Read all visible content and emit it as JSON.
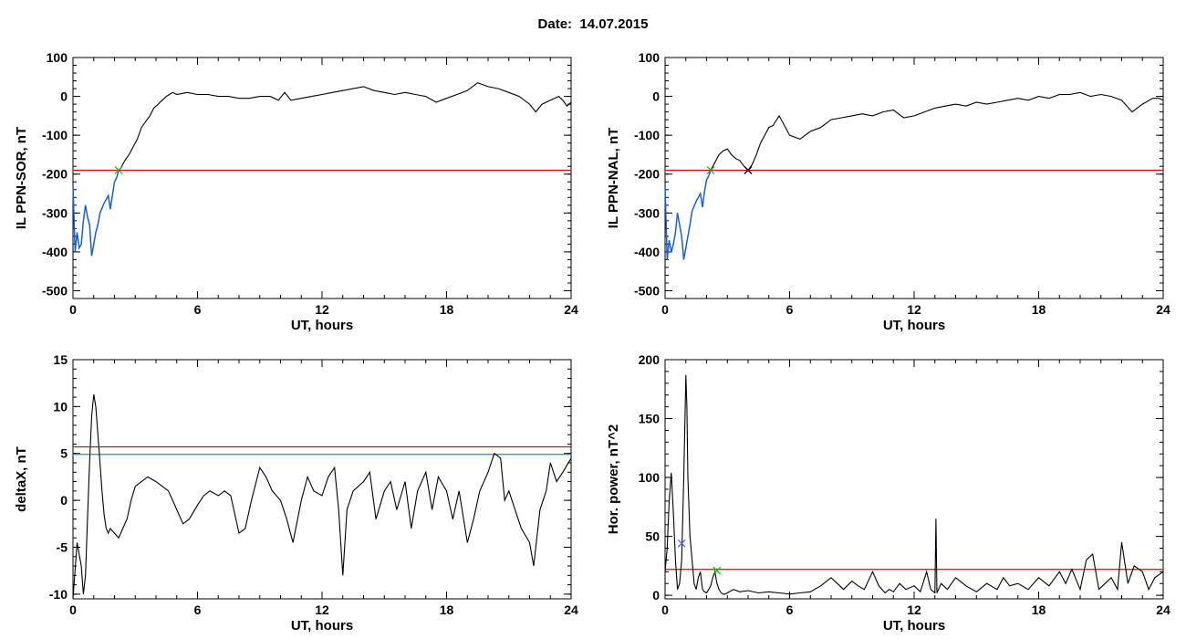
{
  "header": {
    "date_label": "Date:",
    "date_value": "14.07.2015"
  },
  "colors": {
    "threshold": "#e00000",
    "threshold2": "#1f8fb0",
    "blue_segment": "#1060e0",
    "green_marker": "#00c000",
    "blue_marker": "#4060ff",
    "line": "#000000"
  },
  "chart_data": [
    {
      "type": "line",
      "xlabel": "UT, hours",
      "ylabel": "IL PPN-SOR, nT",
      "xlim": [
        0,
        24
      ],
      "ylim": [
        -520,
        100
      ],
      "xticks": [
        0,
        6,
        12,
        18,
        24
      ],
      "yticks": [
        100,
        0,
        -100,
        -200,
        -300,
        -400,
        -500
      ],
      "thresholds": [
        {
          "y": -190,
          "color": "#e00000"
        }
      ],
      "highlight_until": 2.2,
      "markers": [
        {
          "x": 2.2,
          "y": -190,
          "symbol": "x",
          "color": "#00c000"
        }
      ],
      "series": [
        {
          "x": [
            0,
            0.1,
            0.2,
            0.3,
            0.4,
            0.5,
            0.6,
            0.7,
            0.8,
            0.9,
            1.0,
            1.1,
            1.2,
            1.3,
            1.5,
            1.7,
            1.8,
            1.9,
            2.0,
            2.1,
            2.2,
            2.3,
            2.5,
            2.7,
            2.9,
            3.1,
            3.3,
            3.5,
            3.7,
            3.9,
            4.1,
            4.3,
            4.5,
            4.8,
            5.0,
            5.5,
            6.0,
            6.5,
            7.0,
            7.5,
            8.0,
            8.5,
            9.0,
            9.5,
            9.9,
            10.2,
            10.5,
            11.0,
            11.5,
            12.0,
            12.5,
            13.0,
            13.5,
            14.0,
            14.5,
            15.0,
            15.5,
            16.0,
            16.5,
            17.0,
            17.5,
            18.0,
            18.5,
            19.0,
            19.5,
            20.0,
            20.5,
            21.0,
            21.5,
            22.0,
            22.3,
            22.6,
            23.0,
            23.4,
            23.6,
            23.8,
            24.0
          ],
          "y": [
            -230,
            -400,
            -350,
            -390,
            -380,
            -320,
            -280,
            -310,
            -330,
            -410,
            -380,
            -350,
            -330,
            -300,
            -275,
            -255,
            -290,
            -255,
            -220,
            -210,
            -190,
            -185,
            -165,
            -150,
            -130,
            -110,
            -80,
            -65,
            -50,
            -30,
            -20,
            -10,
            0,
            10,
            5,
            10,
            5,
            5,
            0,
            0,
            -5,
            -5,
            0,
            0,
            -10,
            10,
            -10,
            -5,
            0,
            5,
            10,
            15,
            20,
            25,
            15,
            10,
            5,
            10,
            5,
            0,
            -15,
            -5,
            5,
            15,
            35,
            25,
            20,
            10,
            0,
            -20,
            -40,
            -20,
            -10,
            0,
            -10,
            -25,
            -15
          ]
        }
      ]
    },
    {
      "type": "line",
      "xlabel": "UT, hours",
      "ylabel": "IL PPN-NAL, nT",
      "xlim": [
        0,
        24
      ],
      "ylim": [
        -520,
        100
      ],
      "xticks": [
        0,
        6,
        12,
        18,
        24
      ],
      "yticks": [
        100,
        0,
        -100,
        -200,
        -300,
        -400,
        -500
      ],
      "thresholds": [
        {
          "y": -190,
          "color": "#e00000"
        }
      ],
      "highlight_until": 2.2,
      "markers": [
        {
          "x": 2.2,
          "y": -190,
          "symbol": "x",
          "color": "#00c000"
        },
        {
          "x": 4.0,
          "y": -190,
          "symbol": "x",
          "color": "#e00000"
        },
        {
          "x": 4.0,
          "y": -190,
          "symbol": "x",
          "color": "#000000"
        }
      ],
      "series": [
        {
          "x": [
            0,
            0.1,
            0.2,
            0.3,
            0.4,
            0.5,
            0.6,
            0.7,
            0.8,
            0.9,
            1.0,
            1.1,
            1.2,
            1.3,
            1.5,
            1.7,
            1.8,
            1.9,
            2.0,
            2.1,
            2.2,
            2.4,
            2.6,
            2.8,
            3.0,
            3.2,
            3.4,
            3.6,
            3.8,
            4.0,
            4.2,
            4.4,
            4.6,
            4.8,
            5.0,
            5.2,
            5.5,
            5.8,
            6.0,
            6.5,
            7.0,
            7.5,
            8.0,
            8.5,
            9.0,
            9.5,
            10.0,
            10.5,
            11.0,
            11.5,
            12.0,
            12.5,
            13.0,
            13.5,
            14.0,
            14.5,
            15.0,
            15.5,
            16.0,
            16.5,
            17.0,
            17.5,
            18.0,
            18.5,
            19.0,
            19.5,
            20.0,
            20.5,
            21.0,
            21.5,
            22.0,
            22.5,
            23.0,
            23.5,
            23.8,
            24.0
          ],
          "y": [
            -230,
            -420,
            -370,
            -400,
            -380,
            -350,
            -300,
            -330,
            -360,
            -420,
            -390,
            -360,
            -330,
            -295,
            -270,
            -250,
            -285,
            -245,
            -215,
            -205,
            -190,
            -170,
            -150,
            -140,
            -135,
            -150,
            -160,
            -165,
            -180,
            -190,
            -175,
            -150,
            -120,
            -100,
            -80,
            -75,
            -50,
            -80,
            -100,
            -110,
            -90,
            -80,
            -60,
            -55,
            -50,
            -45,
            -50,
            -40,
            -35,
            -55,
            -50,
            -40,
            -30,
            -25,
            -20,
            -25,
            -15,
            -20,
            -15,
            -10,
            -5,
            -10,
            0,
            -5,
            5,
            5,
            10,
            0,
            5,
            0,
            -10,
            -40,
            -20,
            -5,
            -5,
            -10
          ]
        }
      ]
    },
    {
      "type": "line",
      "xlabel": "UT, hours",
      "ylabel": "deltaX, nT",
      "xlim": [
        0,
        24
      ],
      "ylim": [
        -10.5,
        15
      ],
      "xticks": [
        0,
        6,
        12,
        18,
        24
      ],
      "yticks": [
        15,
        10,
        5,
        0,
        -5,
        -10
      ],
      "thresholds": [
        {
          "y": 5.7,
          "color": "#e00000"
        },
        {
          "y": 4.9,
          "color": "#1f8fb0"
        }
      ],
      "series": [
        {
          "x": [
            0,
            0.2,
            0.4,
            0.5,
            0.6,
            0.7,
            0.8,
            0.9,
            1.0,
            1.1,
            1.2,
            1.3,
            1.4,
            1.5,
            1.6,
            1.7,
            1.8,
            2.0,
            2.2,
            2.4,
            2.6,
            2.8,
            3.0,
            3.3,
            3.6,
            4.0,
            4.3,
            4.6,
            5.0,
            5.3,
            5.6,
            6.0,
            6.3,
            6.6,
            7.0,
            7.3,
            7.6,
            8.0,
            8.3,
            8.6,
            9.0,
            9.3,
            9.6,
            10.0,
            10.3,
            10.6,
            11.0,
            11.3,
            11.6,
            12.0,
            12.3,
            12.6,
            12.8,
            13.0,
            13.2,
            13.5,
            14.0,
            14.3,
            14.6,
            15.0,
            15.3,
            15.6,
            16.0,
            16.3,
            16.6,
            17.0,
            17.3,
            17.6,
            18.0,
            18.3,
            18.6,
            19.0,
            19.3,
            19.6,
            20.0,
            20.3,
            20.6,
            20.8,
            21.0,
            21.3,
            21.6,
            22.0,
            22.2,
            22.5,
            22.8,
            23.0,
            23.3,
            23.6,
            24.0
          ],
          "y": [
            -10.5,
            -4.5,
            -7,
            -10,
            -8,
            -2,
            4,
            9,
            11.3,
            10,
            7,
            4,
            1,
            -1.5,
            -3,
            -3.5,
            -3,
            -3.5,
            -4,
            -3,
            -2,
            0,
            1.5,
            2,
            2.5,
            2,
            1.5,
            1,
            -1,
            -2.5,
            -2,
            -0.5,
            0.5,
            1,
            0.5,
            1,
            0.5,
            -3.5,
            -3,
            0,
            3.5,
            2.5,
            1,
            0,
            -2,
            -4.5,
            0,
            2.5,
            1,
            0.5,
            2.5,
            3.5,
            -1,
            -8,
            -1,
            1,
            2,
            3,
            -2,
            1,
            2,
            -1,
            2,
            -3,
            1,
            3,
            -1,
            2.5,
            1,
            -2,
            1,
            -4.5,
            -2,
            1,
            3,
            5,
            4.5,
            0,
            1,
            -1,
            -3,
            -4.5,
            -7,
            -1,
            1,
            4,
            2,
            3,
            4.5
          ]
        }
      ]
    },
    {
      "type": "line",
      "xlabel": "UT, hours",
      "ylabel": "Hor. power, nT^2",
      "xlim": [
        0,
        24
      ],
      "ylim": [
        -3,
        200
      ],
      "xticks": [
        0,
        6,
        12,
        18,
        24
      ],
      "yticks": [
        200,
        150,
        100,
        50,
        0
      ],
      "thresholds": [
        {
          "y": 22,
          "color": "#e00000"
        }
      ],
      "markers": [
        {
          "x": 0.8,
          "y": 44,
          "symbol": "x",
          "color": "#4060ff"
        },
        {
          "x": 2.5,
          "y": 21,
          "symbol": "x",
          "color": "#00c000"
        }
      ],
      "series": [
        {
          "x": [
            0,
            0.1,
            0.2,
            0.3,
            0.4,
            0.5,
            0.6,
            0.7,
            0.8,
            0.9,
            1.0,
            1.05,
            1.1,
            1.2,
            1.3,
            1.4,
            1.5,
            1.6,
            1.7,
            1.8,
            1.9,
            2.0,
            2.1,
            2.2,
            2.3,
            2.4,
            2.5,
            2.6,
            2.7,
            2.8,
            2.9,
            3.0,
            3.3,
            3.6,
            4.0,
            4.5,
            5.0,
            5.5,
            6.0,
            6.5,
            7.0,
            7.5,
            8.0,
            8.3,
            8.6,
            9.0,
            9.3,
            9.6,
            10.0,
            10.3,
            10.6,
            10.8,
            11.0,
            11.3,
            11.6,
            12.0,
            12.3,
            12.6,
            12.8,
            13.0,
            13.05,
            13.1,
            13.3,
            13.6,
            14.0,
            14.5,
            15.0,
            15.5,
            16.0,
            16.3,
            16.6,
            17.0,
            17.5,
            18.0,
            18.5,
            19.0,
            19.3,
            19.6,
            20.0,
            20.3,
            20.6,
            20.9,
            21.2,
            21.5,
            21.8,
            22.0,
            22.3,
            22.6,
            23.0,
            23.3,
            23.6,
            24.0
          ],
          "y": [
            20,
            40,
            80,
            104,
            70,
            30,
            5,
            10,
            30,
            100,
            187,
            160,
            100,
            50,
            30,
            10,
            5,
            15,
            20,
            5,
            3,
            2,
            5,
            8,
            15,
            20,
            10,
            5,
            2,
            1,
            1,
            2,
            5,
            3,
            4,
            2,
            3,
            2,
            1,
            2,
            3,
            8,
            15,
            10,
            5,
            12,
            8,
            5,
            20,
            8,
            2,
            5,
            3,
            10,
            5,
            8,
            3,
            20,
            5,
            2,
            65,
            2,
            10,
            5,
            15,
            8,
            3,
            10,
            5,
            15,
            8,
            10,
            5,
            15,
            8,
            20,
            10,
            22,
            5,
            30,
            35,
            5,
            10,
            15,
            5,
            45,
            10,
            25,
            20,
            5,
            15,
            20
          ]
        }
      ]
    }
  ]
}
